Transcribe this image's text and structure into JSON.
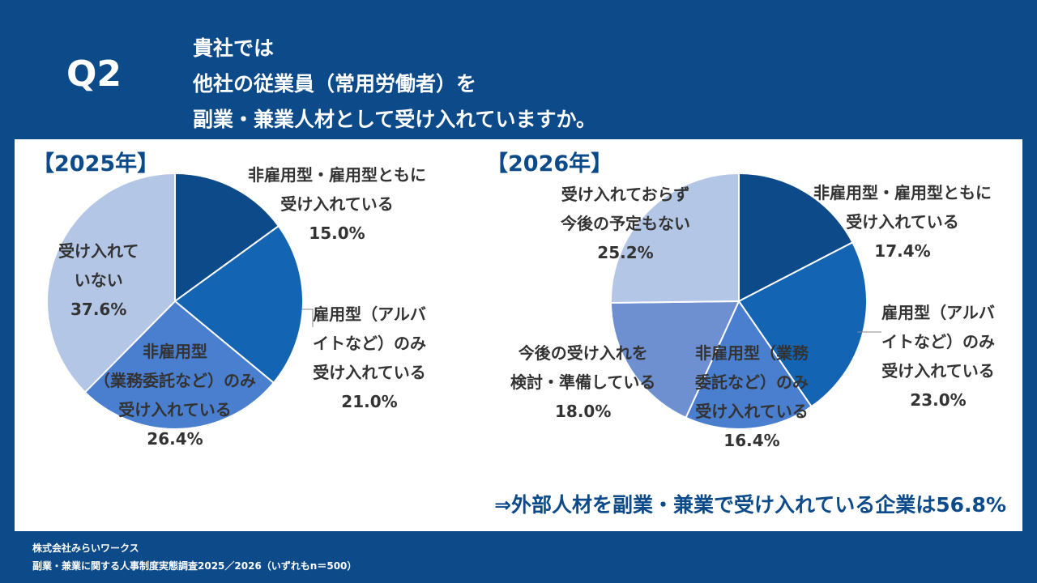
{
  "header": {
    "q_label": "Q2",
    "question_lines": [
      "貴社では",
      "他社の従業員（常用労働者）を",
      "副業・兼業人材として受け入れていますか。"
    ]
  },
  "colors": {
    "background": "#0c4a8a",
    "slice_colors": [
      "#0c4a8a",
      "#1464b4",
      "#4a7fd0",
      "#6e8fd0",
      "#b4c6e6"
    ]
  },
  "chart_data": [
    {
      "type": "pie",
      "title": "【2025年】",
      "unit": "%",
      "slices": [
        {
          "label_lines": [
            "非雇用型・雇用型ともに",
            "受け入れている"
          ],
          "value": 15.0,
          "value_text": "15.0%"
        },
        {
          "label_lines": [
            "雇用型（アルバ",
            "イトなど）のみ",
            "受け入れている"
          ],
          "value": 21.0,
          "value_text": "21.0%"
        },
        {
          "label_lines": [
            "非雇用型",
            "（業務委託など）のみ",
            "受け入れている"
          ],
          "value": 26.4,
          "value_text": "26.4%"
        },
        {
          "label_lines": [
            "受け入れて",
            "いない"
          ],
          "value": 37.6,
          "value_text": "37.6%"
        }
      ]
    },
    {
      "type": "pie",
      "title": "【2026年】",
      "unit": "%",
      "slices": [
        {
          "label_lines": [
            "非雇用型・雇用型ともに",
            "受け入れている"
          ],
          "value": 17.4,
          "value_text": "17.4%"
        },
        {
          "label_lines": [
            "雇用型（アルバ",
            "イトなど）のみ",
            "受け入れている"
          ],
          "value": 23.0,
          "value_text": "23.0%"
        },
        {
          "label_lines": [
            "非雇用型（業務",
            "委託など）のみ",
            "受け入れている"
          ],
          "value": 16.4,
          "value_text": "16.4%"
        },
        {
          "label_lines": [
            "今後の受け入れを",
            "検討・準備している"
          ],
          "value": 18.0,
          "value_text": "18.0%"
        },
        {
          "label_lines": [
            "受け入れておらず",
            "今後の予定もない"
          ],
          "value": 25.2,
          "value_text": "25.2%"
        }
      ]
    }
  ],
  "conclusion": "⇒外部人材を副業・兼業で受け入れている企業は56.8%",
  "footer": {
    "company": "株式会社みらいワークス",
    "source": "副業・兼業に関する人事制度実態調査2025／2026（いずれもn＝500）"
  }
}
